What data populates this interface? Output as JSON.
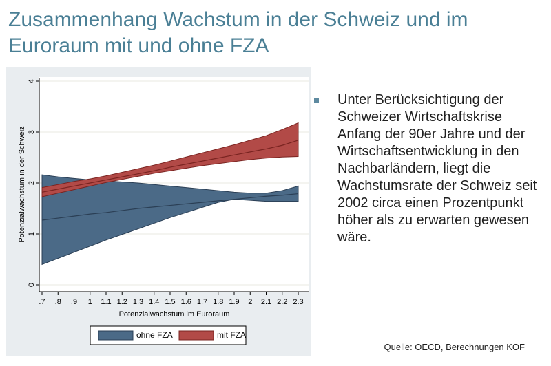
{
  "slide": {
    "title": "Zusammenhang Wachstum in der Schweiz und im Euroraum mit und ohne FZA",
    "bullet": "Unter Berücksichtigung der Schweizer Wirtschaftskrise Anfang der 90er Jahre und der Wirtschaftsentwicklung in den Nachbarländern, liegt die Wachstumsrate der Schweiz seit 2002 circa einen Prozentpunkt höher als zu erwarten gewesen wäre.",
    "source": "Quelle: OECD, Berechnungen KOF"
  },
  "chart_data": {
    "type": "area",
    "xlabel": "Potenzialwachstum im Euroraum",
    "ylabel": "Potenzialwachstum in der Schweiz",
    "xlim": [
      0.7,
      2.3
    ],
    "ylim": [
      0,
      4
    ],
    "x_ticks": [
      0.7,
      0.8,
      0.9,
      1.0,
      1.1,
      1.2,
      1.3,
      1.4,
      1.5,
      1.6,
      1.7,
      1.8,
      1.9,
      2.0,
      2.1,
      2.2,
      2.3
    ],
    "x_tick_labels": [
      ".7",
      ".8",
      ".9",
      "1",
      "1.1",
      "1.2",
      "1.3",
      "1.4",
      "1.5",
      "1.6",
      "1.7",
      "1.8",
      "1.9",
      "2",
      "2.1",
      "2.2",
      "2.3"
    ],
    "y_ticks": [
      0,
      1,
      2,
      3,
      4
    ],
    "y_tick_labels": [
      "0",
      "1",
      "2",
      "3",
      "4"
    ],
    "grid": true,
    "legend_position": "bottom",
    "x": [
      0.7,
      0.8,
      0.9,
      1.0,
      1.1,
      1.2,
      1.3,
      1.4,
      1.5,
      1.6,
      1.7,
      1.8,
      1.9,
      2.0,
      2.1,
      2.2,
      2.3
    ],
    "series": [
      {
        "name": "ohne FZA",
        "color": "#4b6a87",
        "edge_color": "#2b3f55",
        "fit": [
          1.27,
          1.31,
          1.35,
          1.39,
          1.42,
          1.46,
          1.5,
          1.53,
          1.56,
          1.59,
          1.62,
          1.65,
          1.68,
          1.71,
          1.74,
          1.76,
          1.79
        ],
        "lower": [
          0.4,
          0.52,
          0.64,
          0.76,
          0.88,
          0.99,
          1.1,
          1.21,
          1.32,
          1.42,
          1.52,
          1.62,
          1.68,
          1.66,
          1.64,
          1.64,
          1.64
        ],
        "upper": [
          2.16,
          2.12,
          2.09,
          2.06,
          2.04,
          2.02,
          2.0,
          1.97,
          1.94,
          1.91,
          1.88,
          1.85,
          1.82,
          1.8,
          1.8,
          1.85,
          1.94
        ]
      },
      {
        "name": "mit FZA",
        "color": "#b24a47",
        "edge_color": "#7a2421",
        "fit": [
          1.82,
          1.88,
          1.94,
          2.0,
          2.06,
          2.12,
          2.18,
          2.24,
          2.31,
          2.37,
          2.43,
          2.49,
          2.55,
          2.61,
          2.67,
          2.74,
          2.84
        ],
        "lower": [
          1.73,
          1.8,
          1.87,
          1.94,
          2.01,
          2.07,
          2.13,
          2.19,
          2.24,
          2.29,
          2.34,
          2.38,
          2.42,
          2.46,
          2.49,
          2.51,
          2.52
        ],
        "upper": [
          1.91,
          1.97,
          2.03,
          2.08,
          2.14,
          2.21,
          2.28,
          2.35,
          2.43,
          2.51,
          2.59,
          2.67,
          2.75,
          2.84,
          2.93,
          3.05,
          3.18
        ]
      }
    ]
  }
}
